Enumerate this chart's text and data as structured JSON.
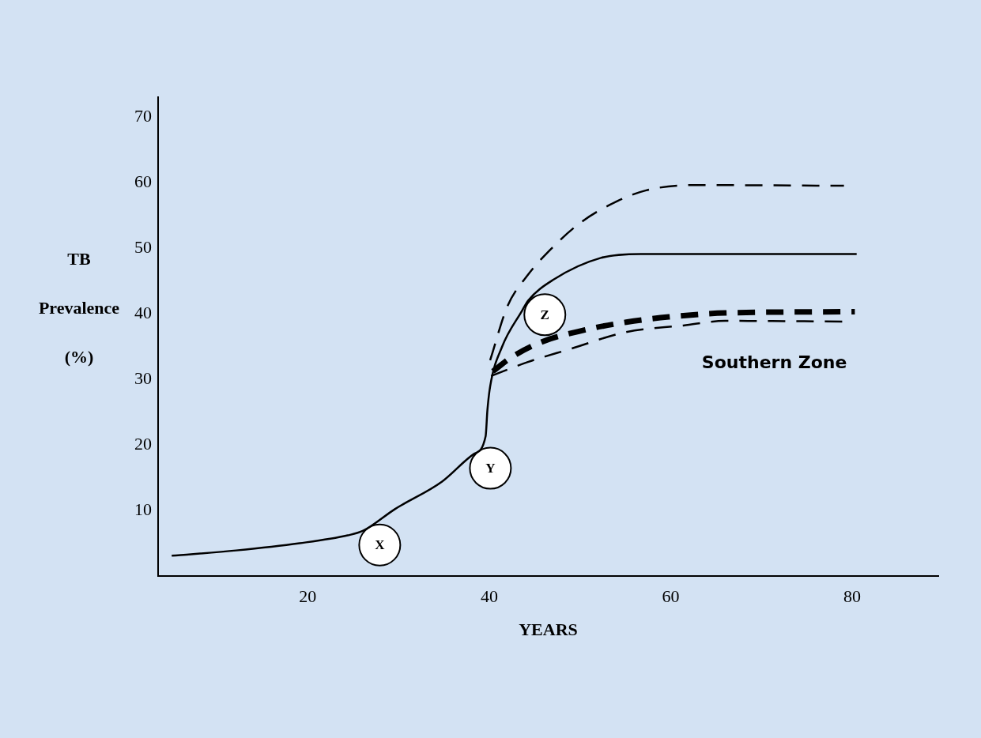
{
  "chart_data": {
    "type": "line",
    "xlabel": "YEARS",
    "ylabel": "TB Prevalence (%)",
    "xlim": [
      3.5,
      89.5
    ],
    "ylim": [
      0,
      73
    ],
    "xticks": [
      20,
      40,
      60,
      80
    ],
    "yticks": [
      10,
      20,
      30,
      40,
      50,
      60,
      70
    ],
    "grid": false,
    "legend": false,
    "marker": "none",
    "series": [
      {
        "color": "#000000",
        "line_style": "solid",
        "x": [
          5,
          12.1,
          19.1,
          24.4,
          26.1,
          29.6,
          34.8,
          38.3,
          39.6,
          39.8,
          40.1,
          41.4,
          43.6,
          44.3,
          47.1,
          52.3,
          56.7,
          80.5
        ],
        "values": [
          3.1,
          3.9,
          5,
          6.2,
          6.9,
          10.2,
          14.4,
          18.6,
          21.3,
          25.3,
          28.9,
          34.9,
          40.4,
          42,
          45.2,
          48.5,
          49.1,
          49.1
        ]
      },
      {
        "color": "#000000",
        "line_style": "dashed",
        "x": [
          40.1,
          42,
          44.2,
          46.7,
          49.8,
          53.3,
          57.3,
          62.9,
          79.1
        ],
        "values": [
          32.9,
          41.1,
          45.8,
          49.7,
          53.6,
          56.6,
          58.8,
          59.6,
          59.5
        ]
      },
      {
        "name": "Southern Zone",
        "color": "#000000",
        "line_style": "dashed",
        "x": [
          40.4,
          42.4,
          45.8,
          50.5,
          55.1,
          59.8,
          66,
          80.3
        ],
        "values": [
          31.2,
          33.3,
          35.7,
          37.5,
          38.7,
          39.5,
          40.1,
          40.3
        ]
      },
      {
        "color": "#000000",
        "line_style": "dashed",
        "x": [
          40.2,
          44.2,
          48.9,
          55.1,
          61.4,
          66,
          79.1
        ],
        "values": [
          30.5,
          32.6,
          34.6,
          37.2,
          38.2,
          38.9,
          38.8
        ]
      }
    ],
    "annotations": [
      {
        "text": "X",
        "x": 26.1,
        "y": 6.9
      },
      {
        "text": "Y",
        "x": 38.3,
        "y": 18.6
      },
      {
        "text": "Z",
        "x": 44.3,
        "y": 42
      }
    ]
  }
}
